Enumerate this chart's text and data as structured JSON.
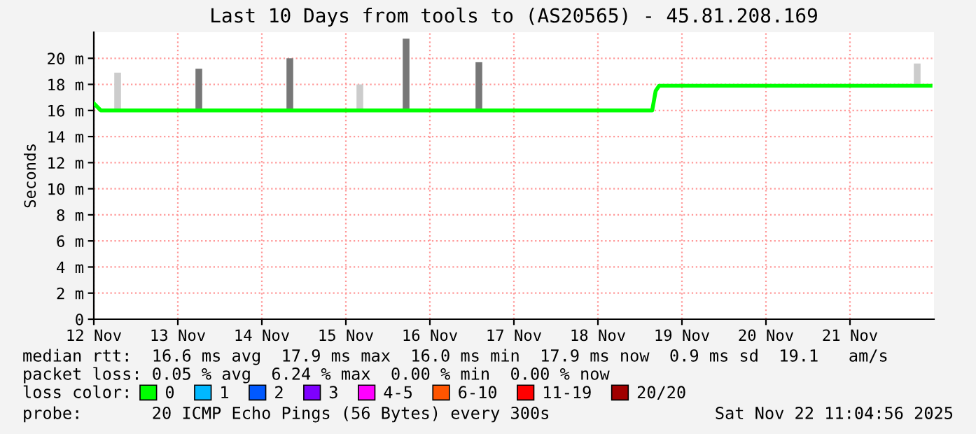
{
  "chart_data": {
    "type": "line",
    "title": "Last 10 Days from tools to (AS20565) - 45.81.208.169",
    "ylabel": "Seconds",
    "xlim": [
      "2025-11-12T12:00",
      "2025-11-22T12:00"
    ],
    "xticks": [
      {
        "value": "2025-11-12T12:00",
        "label": "12 Nov"
      },
      {
        "value": "2025-11-13T12:00",
        "label": "13 Nov"
      },
      {
        "value": "2025-11-14T12:00",
        "label": "14 Nov"
      },
      {
        "value": "2025-11-15T12:00",
        "label": "15 Nov"
      },
      {
        "value": "2025-11-16T12:00",
        "label": "16 Nov"
      },
      {
        "value": "2025-11-17T12:00",
        "label": "17 Nov"
      },
      {
        "value": "2025-11-18T12:00",
        "label": "18 Nov"
      },
      {
        "value": "2025-11-19T12:00",
        "label": "19 Nov"
      },
      {
        "value": "2025-11-20T12:00",
        "label": "20 Nov"
      },
      {
        "value": "2025-11-21T12:00",
        "label": "21 Nov"
      }
    ],
    "ylim": [
      0,
      22
    ],
    "yticks": [
      0,
      {
        "value": 2,
        "label": "2 m"
      },
      {
        "value": 4,
        "label": "4 m"
      },
      {
        "value": 6,
        "label": "6 m"
      },
      {
        "value": 8,
        "label": "8 m"
      },
      {
        "value": 10,
        "label": "10 m"
      },
      {
        "value": 12,
        "label": "12 m"
      },
      {
        "value": 14,
        "label": "14 m"
      },
      {
        "value": 16,
        "label": "16 m"
      },
      {
        "value": 18,
        "label": "18 m"
      },
      {
        "value": 20,
        "label": "20 m"
      }
    ],
    "grid": true,
    "legend": "bottom",
    "series": [
      {
        "type": "bar",
        "color": "#888888",
        "colors": [
          "#cccccc",
          "#777777",
          "#777777",
          "#cccccc",
          "#777777",
          "#777777",
          "#cccccc"
        ],
        "x": [
          "2025-11-12T18:48",
          "2025-11-13T18:00",
          "2025-11-14T20:00",
          "2025-11-15T16:00",
          "2025-11-16T05:12",
          "2025-11-17T02:00",
          "2025-11-22T07:12"
        ],
        "base": [
          16.0,
          16.0,
          16.0,
          16.0,
          16.0,
          16.0,
          17.9
        ],
        "values": [
          2.9,
          3.2,
          4.0,
          2.0,
          5.5,
          3.7,
          1.7
        ]
      },
      {
        "name": "0",
        "color": "#00ff00",
        "x": [
          "2025-11-12T12:10",
          "2025-11-12T14:00",
          "2025-11-13T06:00",
          "2025-11-13T18:00",
          "2025-11-14T06:00",
          "2025-11-14T18:00",
          "2025-11-15T06:00",
          "2025-11-15T18:00",
          "2025-11-16T06:00",
          "2025-11-16T18:00",
          "2025-11-17T06:00",
          "2025-11-17T18:00",
          "2025-11-18T06:00",
          "2025-11-18T18:00",
          "2025-11-19T03:30",
          "2025-11-19T04:30",
          "2025-11-19T05:30",
          "2025-11-19T18:00",
          "2025-11-20T06:00",
          "2025-11-20T18:00",
          "2025-11-21T06:00",
          "2025-11-21T18:00",
          "2025-11-22T06:00",
          "2025-11-22T11:00"
        ],
        "values": [
          16.5,
          16.0,
          16.0,
          16.0,
          16.0,
          16.0,
          16.0,
          16.0,
          16.0,
          16.0,
          16.0,
          16.0,
          16.0,
          16.0,
          16.0,
          17.5,
          17.9,
          17.9,
          17.9,
          17.9,
          17.9,
          17.9,
          17.9,
          17.9
        ]
      },
      {
        "name": "1",
        "color": "#00b8ff"
      },
      {
        "name": "2",
        "color": "#0059ff"
      },
      {
        "name": "3",
        "color": "#7e00ff"
      },
      {
        "name": "4-5",
        "color": "#ff00ff"
      },
      {
        "name": "6-10",
        "color": "#ff5500"
      },
      {
        "name": "11-19",
        "color": "#ff0000"
      },
      {
        "name": "20/20",
        "color": "#a10000"
      }
    ],
    "annotations": [
      "median rtt:  16.6 ms avg  17.9 ms max  16.0 ms min  17.9 ms now  0.9 ms sd  19.1   am/s",
      "packet loss: 0.05 % avg  6.24 % max  0.00 % min  0.00 % now",
      "loss color:",
      "probe:       20 ICMP Echo Pings (56 Bytes) every 300s",
      "Sat Nov 22 11:04:56 2025"
    ]
  }
}
